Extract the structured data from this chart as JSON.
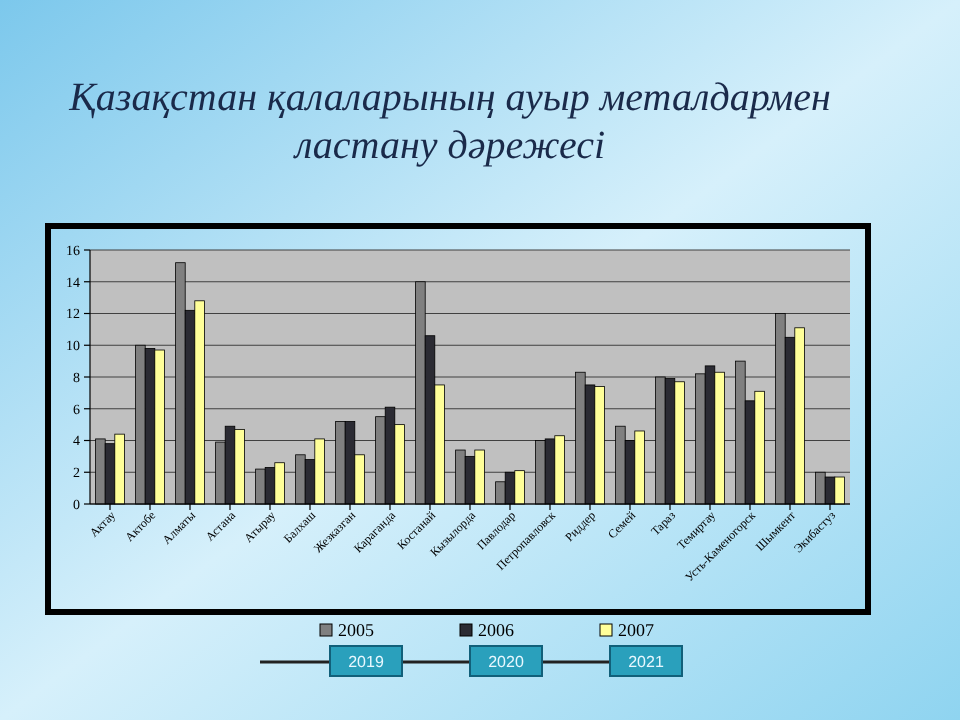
{
  "chart_data": {
    "type": "bar",
    "title": "Қазақстан қалаларының ауыр металдармен ластану дәрежесі",
    "categories": [
      "Актау",
      "Актобе",
      "Алматы",
      "Астана",
      "Атырау",
      "Балхаш",
      "Жезказган",
      "Караганда",
      "Костанай",
      "Кызылорда",
      "Павлодар",
      "Петропавловск",
      "Риддер",
      "Семей",
      "Тараз",
      "Темиртау",
      "Усть-Каменогорск",
      "Шымкент",
      "Экибастуз"
    ],
    "series": [
      {
        "name": "2005",
        "color": "#808080",
        "values": [
          4.1,
          10.0,
          15.2,
          3.9,
          2.2,
          3.1,
          5.2,
          5.5,
          14.0,
          3.4,
          1.4,
          4.0,
          8.3,
          4.9,
          8.0,
          8.2,
          9.0,
          12.0,
          2.0
        ]
      },
      {
        "name": "2006",
        "color": "#2b2b33",
        "values": [
          3.8,
          9.8,
          12.2,
          4.9,
          2.3,
          2.8,
          5.2,
          6.1,
          10.6,
          3.0,
          2.0,
          4.1,
          7.5,
          4.0,
          7.9,
          8.7,
          6.5,
          10.5,
          1.7
        ]
      },
      {
        "name": "2007",
        "color": "#ffff99",
        "values": [
          4.4,
          9.7,
          12.8,
          4.7,
          2.6,
          4.1,
          3.1,
          5.0,
          7.5,
          3.4,
          2.1,
          4.3,
          7.4,
          4.6,
          7.7,
          8.3,
          7.1,
          11.1,
          1.7
        ]
      }
    ],
    "ylim": [
      0,
      16
    ],
    "yticks": [
      0,
      2,
      4,
      6,
      8,
      10,
      12,
      14,
      16
    ],
    "grid": "y",
    "legend": "bottom",
    "annotations": [
      "2019",
      "2020",
      "2021"
    ]
  }
}
